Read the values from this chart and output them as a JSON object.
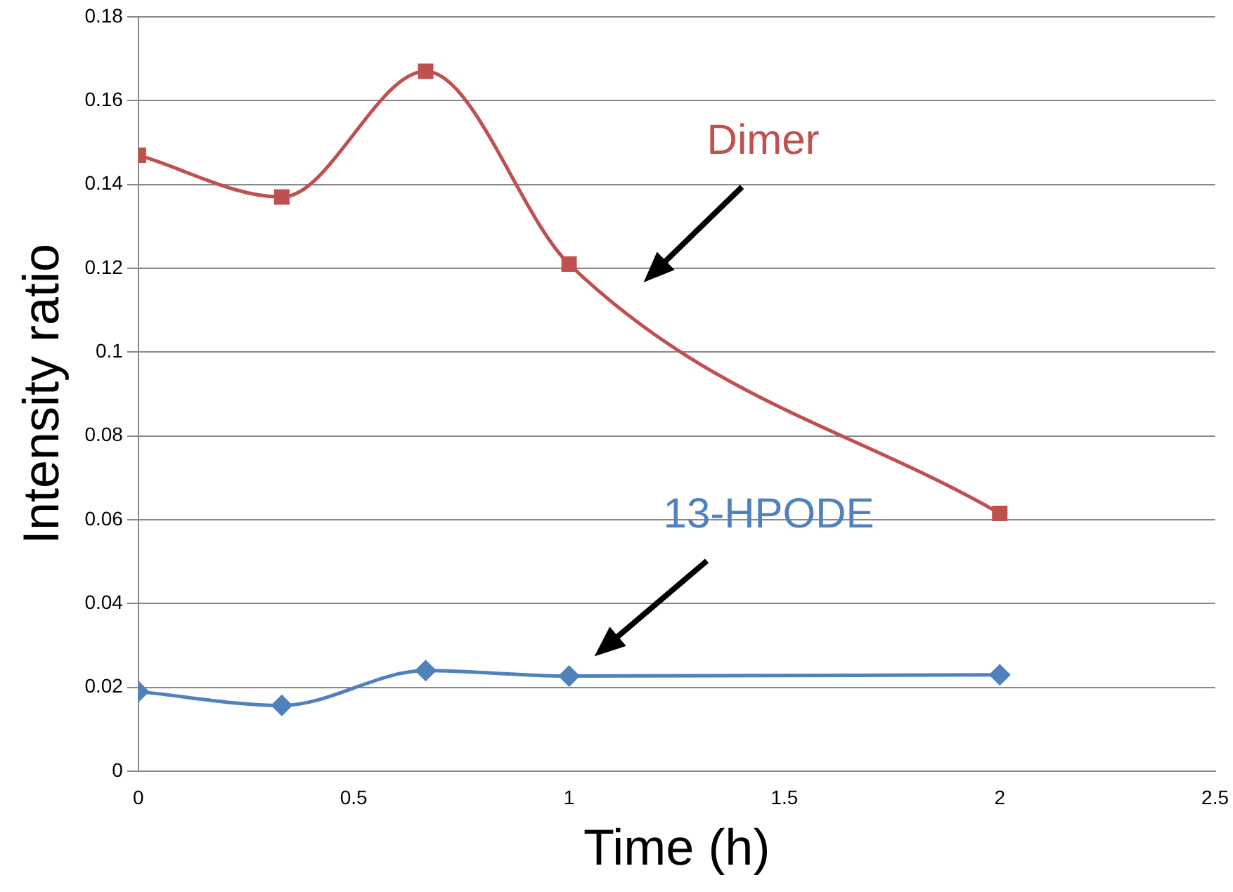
{
  "chart_data": {
    "type": "line",
    "xlabel": "Time (h)",
    "ylabel": "Intensity ratio",
    "x": [
      0,
      0.333,
      0.667,
      1,
      2
    ],
    "series": [
      {
        "name": "Dimer",
        "color": "#c0504d",
        "marker": "square",
        "values": [
          0.147,
          0.137,
          0.167,
          0.121,
          0.0615
        ]
      },
      {
        "name": "13-HPODE",
        "color": "#4f81bd",
        "marker": "diamond",
        "values": [
          0.019,
          0.0157,
          0.024,
          0.0227,
          0.023
        ]
      }
    ],
    "xlim": [
      0,
      2.5
    ],
    "xticks": [
      0,
      0.5,
      1,
      1.5,
      2,
      2.5
    ],
    "ylim": [
      0,
      0.18
    ],
    "yticks": [
      0,
      0.02,
      0.04,
      0.06,
      0.08,
      0.1,
      0.12,
      0.14,
      0.16,
      0.18
    ],
    "grid": "y",
    "legend": false
  }
}
